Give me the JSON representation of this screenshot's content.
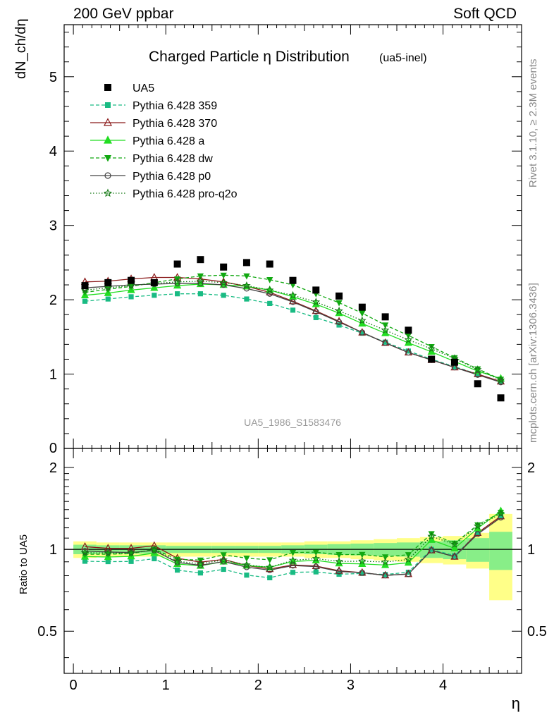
{
  "header": {
    "left": "200 GeV ppbar",
    "right": "Soft QCD"
  },
  "side_labels": {
    "upper": "Rivet 3.1.10, ≥ 2.3M events",
    "lower": "mcplots.cern.ch [arXiv:1306.3436]"
  },
  "chart_data": {
    "type": "scatter",
    "title": "Charged Particle η Distribution",
    "title_tag": "(ua5-inel)",
    "watermark": "UA5_1986_S1583476",
    "xlabel": "η",
    "ylabel": "dN_ch/dη",
    "ratio_ylabel": "Ratio to UA5",
    "xlim": [
      -0.1,
      4.85
    ],
    "ylim": [
      0,
      5.7
    ],
    "ratio_ylim": [
      0.35,
      2.35
    ],
    "x_ticks": [
      "0",
      "1",
      "2",
      "3",
      "4"
    ],
    "y_ticks": [
      "1",
      "2",
      "3",
      "4",
      "5"
    ],
    "ratio_ticks": [
      "0.5",
      "1",
      "2"
    ],
    "legend_position": "top-left",
    "colors": {
      "data": "#000000",
      "p359": "#19bb83",
      "p370": "#8b1a1a",
      "pa": "#22dd22",
      "pdw": "#11a811",
      "pp0": "#444444",
      "pq2o": "#137813",
      "band_outer": "#ffff88",
      "band_inner": "#88ee88"
    },
    "x": [
      0.125,
      0.375,
      0.625,
      0.875,
      1.125,
      1.375,
      1.625,
      1.875,
      2.125,
      2.375,
      2.625,
      2.875,
      3.125,
      3.375,
      3.625,
      3.875,
      4.125,
      4.375,
      4.625
    ],
    "data": {
      "name": "UA5",
      "values": [
        2.19,
        2.23,
        2.26,
        2.23,
        2.48,
        2.54,
        2.44,
        2.5,
        2.48,
        2.26,
        2.13,
        2.05,
        1.9,
        1.77,
        1.59,
        1.2,
        1.16,
        0.87,
        0.68
      ]
    },
    "band": {
      "outer": [
        0.07,
        0.06,
        0.06,
        0.06,
        0.06,
        0.06,
        0.06,
        0.06,
        0.06,
        0.06,
        0.07,
        0.07,
        0.08,
        0.09,
        0.1,
        0.11,
        0.12,
        0.15,
        0.35
      ],
      "inner": [
        0.04,
        0.035,
        0.035,
        0.035,
        0.03,
        0.03,
        0.03,
        0.03,
        0.03,
        0.035,
        0.04,
        0.045,
        0.05,
        0.055,
        0.06,
        0.07,
        0.08,
        0.1,
        0.16
      ]
    },
    "series": [
      {
        "name": "Pythia 6.428 359",
        "key": "p359",
        "marker": "square",
        "dash": "dashed",
        "values": [
          1.98,
          2.01,
          2.04,
          2.06,
          2.08,
          2.08,
          2.06,
          2.01,
          1.95,
          1.86,
          1.76,
          1.66,
          1.55,
          1.43,
          1.31,
          1.2,
          1.1,
          1.0,
          0.9
        ]
      },
      {
        "name": "Pythia 6.428 370",
        "key": "p370",
        "marker": "triangle-open",
        "dash": "solid",
        "values": [
          2.24,
          2.25,
          2.28,
          2.3,
          2.3,
          2.28,
          2.24,
          2.18,
          2.1,
          1.98,
          1.85,
          1.71,
          1.56,
          1.42,
          1.29,
          1.19,
          1.09,
          1.0,
          0.9
        ]
      },
      {
        "name": "Pythia 6.428 a",
        "key": "pa",
        "marker": "triangle",
        "dash": "solid",
        "values": [
          2.06,
          2.09,
          2.13,
          2.16,
          2.19,
          2.21,
          2.2,
          2.18,
          2.13,
          2.04,
          1.94,
          1.82,
          1.68,
          1.55,
          1.42,
          1.3,
          1.17,
          1.04,
          0.94
        ]
      },
      {
        "name": "Pythia 6.428 dw",
        "key": "pdw",
        "marker": "triangle-down",
        "dash": "dashed",
        "values": [
          2.1,
          2.14,
          2.18,
          2.23,
          2.28,
          2.32,
          2.33,
          2.32,
          2.27,
          2.2,
          2.08,
          1.96,
          1.82,
          1.66,
          1.52,
          1.37,
          1.22,
          1.07,
          0.93
        ]
      },
      {
        "name": "Pythia 6.428 p0",
        "key": "pp0",
        "marker": "circle-open",
        "dash": "solid",
        "values": [
          2.16,
          2.18,
          2.2,
          2.21,
          2.22,
          2.22,
          2.2,
          2.15,
          2.08,
          1.97,
          1.84,
          1.7,
          1.56,
          1.42,
          1.29,
          1.19,
          1.09,
          0.99,
          0.89
        ]
      },
      {
        "name": "Pythia 6.428 pro-q2o",
        "key": "pq2o",
        "marker": "star",
        "dash": "dotted",
        "values": [
          2.13,
          2.16,
          2.19,
          2.22,
          2.24,
          2.25,
          2.23,
          2.19,
          2.13,
          2.06,
          1.97,
          1.85,
          1.72,
          1.59,
          1.46,
          1.34,
          1.21,
          1.06,
          0.92
        ]
      }
    ]
  }
}
